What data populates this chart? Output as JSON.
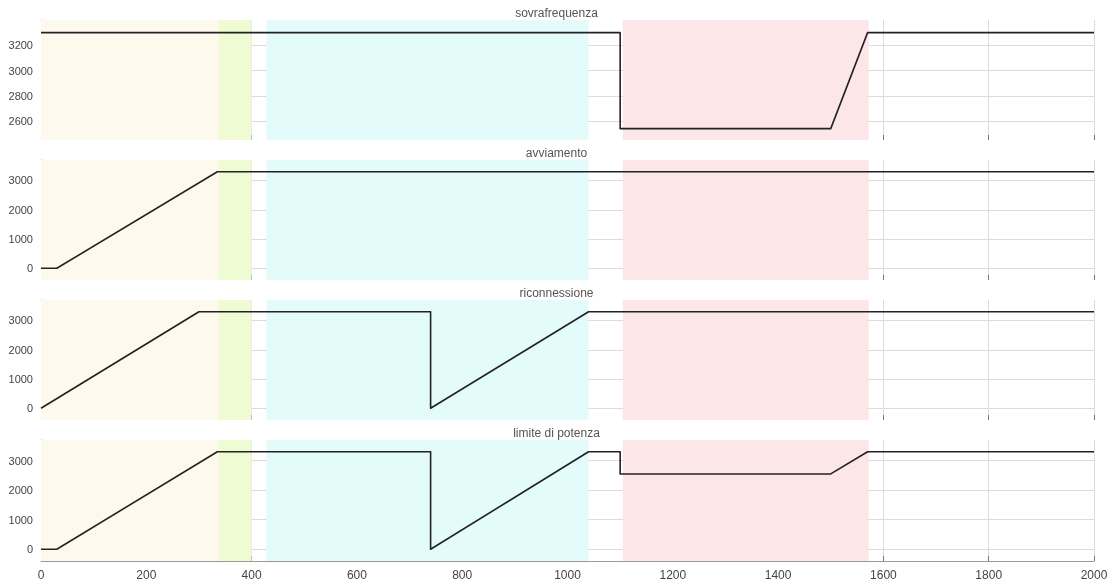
{
  "chart_data": [
    {
      "type": "line",
      "title": "sovrafrequenza",
      "xlim": [
        0,
        2000
      ],
      "xticks": [
        0,
        200,
        400,
        600,
        800,
        1000,
        1200,
        1400,
        1600,
        1800,
        2000
      ],
      "ylim": [
        2450,
        3400
      ],
      "yticks": [
        2600,
        2800,
        3000,
        3200
      ],
      "grid": true,
      "tick_labels": "y",
      "series": [
        {
          "color": "#222222",
          "x": [
            0,
            1100,
            1100,
            1500,
            1570,
            2000
          ],
          "values": [
            3300,
            3300,
            2540,
            2540,
            3300,
            3300
          ]
        }
      ],
      "bands": [
        {
          "axis": "x",
          "from": 0,
          "to": 338,
          "color": "#fdf9ec"
        },
        {
          "axis": "x",
          "from": 338,
          "to": 400,
          "color": "#effbd2"
        },
        {
          "axis": "x",
          "from": 428,
          "to": 1040,
          "color": "#e3fbfb"
        },
        {
          "axis": "x",
          "from": 1105,
          "to": 1572,
          "color": "#fde6e8"
        }
      ]
    },
    {
      "type": "line",
      "title": "avviamento",
      "xlim": [
        0,
        2000
      ],
      "xticks": [
        0,
        200,
        400,
        600,
        800,
        1000,
        1200,
        1400,
        1600,
        1800,
        2000
      ],
      "ylim": [
        -400,
        3700
      ],
      "yticks": [
        0,
        1000,
        2000,
        3000
      ],
      "grid": true,
      "tick_labels": "y",
      "series": [
        {
          "color": "#222222",
          "x": [
            0,
            30,
            335,
            2000
          ],
          "values": [
            0,
            0,
            3300,
            3300
          ]
        }
      ],
      "bands": [
        {
          "axis": "x",
          "from": 0,
          "to": 338,
          "color": "#fdf9ec"
        },
        {
          "axis": "x",
          "from": 338,
          "to": 400,
          "color": "#effbd2"
        },
        {
          "axis": "x",
          "from": 428,
          "to": 1040,
          "color": "#e3fbfb"
        },
        {
          "axis": "x",
          "from": 1105,
          "to": 1572,
          "color": "#fde6e8"
        }
      ]
    },
    {
      "type": "line",
      "title": "riconnessione",
      "xlim": [
        0,
        2000
      ],
      "xticks": [
        0,
        200,
        400,
        600,
        800,
        1000,
        1200,
        1400,
        1600,
        1800,
        2000
      ],
      "ylim": [
        -400,
        3700
      ],
      "yticks": [
        0,
        1000,
        2000,
        3000
      ],
      "grid": true,
      "tick_labels": "y",
      "series": [
        {
          "color": "#222222",
          "x": [
            0,
            300,
            740,
            740,
            1040,
            2000
          ],
          "values": [
            0,
            3300,
            3300,
            0,
            3300,
            3300
          ]
        }
      ],
      "bands": [
        {
          "axis": "x",
          "from": 0,
          "to": 338,
          "color": "#fdf9ec"
        },
        {
          "axis": "x",
          "from": 338,
          "to": 400,
          "color": "#effbd2"
        },
        {
          "axis": "x",
          "from": 428,
          "to": 1040,
          "color": "#e3fbfb"
        },
        {
          "axis": "x",
          "from": 1105,
          "to": 1572,
          "color": "#fde6e8"
        }
      ]
    },
    {
      "type": "line",
      "title": "limite di potenza",
      "xlim": [
        0,
        2000
      ],
      "xticks": [
        0,
        200,
        400,
        600,
        800,
        1000,
        1200,
        1400,
        1600,
        1800,
        2000
      ],
      "ylim": [
        -400,
        3700
      ],
      "yticks": [
        0,
        1000,
        2000,
        3000
      ],
      "grid": true,
      "series": [
        {
          "color": "#222222",
          "x": [
            0,
            30,
            335,
            740,
            740,
            1040,
            1100,
            1100,
            1500,
            1570,
            2000
          ],
          "values": [
            0,
            0,
            3300,
            3300,
            0,
            3300,
            3300,
            2550,
            2550,
            3300,
            3300
          ]
        }
      ],
      "bands": [
        {
          "axis": "x",
          "from": 0,
          "to": 338,
          "color": "#fdf9ec"
        },
        {
          "axis": "x",
          "from": 338,
          "to": 400,
          "color": "#effbd2"
        },
        {
          "axis": "x",
          "from": 428,
          "to": 1040,
          "color": "#e3fbfb"
        },
        {
          "axis": "x",
          "from": 1105,
          "to": 1572,
          "color": "#fde6e8"
        }
      ]
    }
  ]
}
